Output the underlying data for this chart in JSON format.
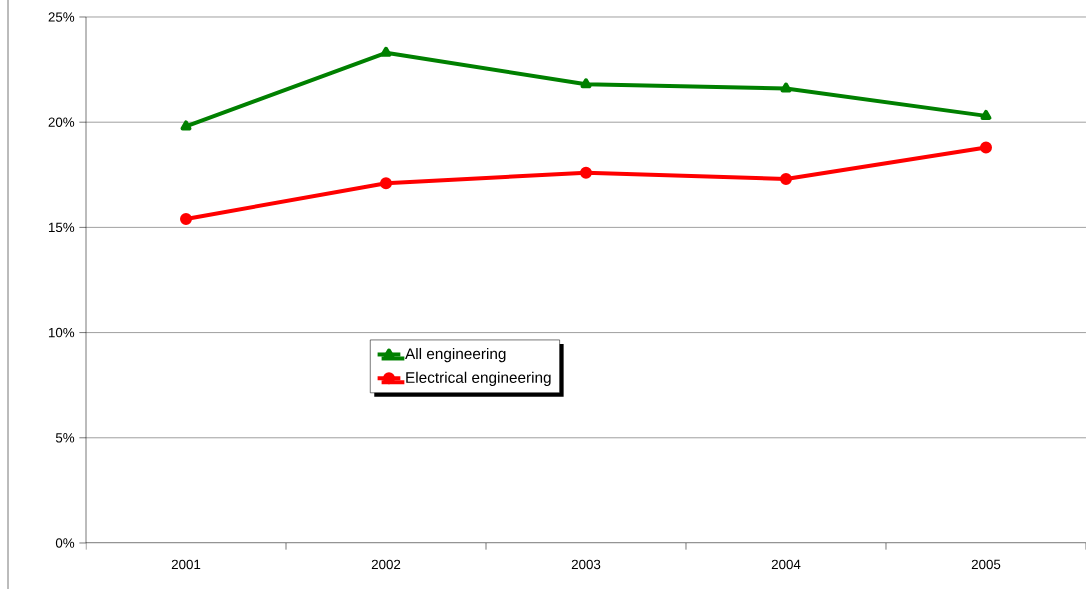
{
  "chart_data": {
    "type": "line",
    "categories": [
      "2001",
      "2002",
      "2003",
      "2004",
      "2005"
    ],
    "series": [
      {
        "name": "All engineering",
        "color": "#008000",
        "marker": "triangle",
        "values": [
          19.8,
          23.3,
          21.8,
          21.6,
          20.3
        ]
      },
      {
        "name": "Electrical engineering",
        "color": "#ff0000",
        "marker": "circle",
        "values": [
          15.4,
          17.1,
          17.6,
          17.3,
          18.8
        ]
      }
    ],
    "ylim": [
      0,
      25
    ],
    "yticks": [
      {
        "value": 0,
        "label": "0%"
      },
      {
        "value": 5,
        "label": "5%"
      },
      {
        "value": 10,
        "label": "10%"
      },
      {
        "value": 15,
        "label": "15%"
      },
      {
        "value": 20,
        "label": "20%"
      },
      {
        "value": 25,
        "label": "25%"
      }
    ],
    "grid": "y",
    "legend": "center",
    "line_style": "solid"
  }
}
